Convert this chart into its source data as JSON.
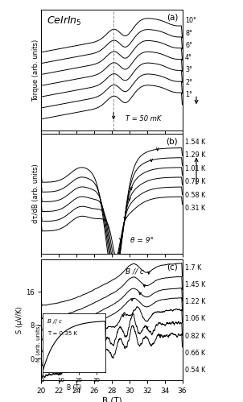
{
  "title": "CeIrIn$_5$",
  "xmin": 20,
  "xmax": 36,
  "xlabel": "B (T)",
  "panel_a": {
    "label": "(a)",
    "ylabel": "Torque (arb. units)",
    "T_label": "T = 50 mK",
    "angles": [
      "10°",
      "8°",
      "6°",
      "4°",
      "3°",
      "2°",
      "1°"
    ],
    "dashed_line_x": 28.2
  },
  "panel_b": {
    "label": "(b)",
    "ylabel": "dτ/dB (arb. units)",
    "theta_label": "θ = 9°",
    "temperatures": [
      "1.54 K",
      "1.29 K",
      "1.01 K",
      "0.79 K",
      "0.58 K",
      "0.31 K"
    ]
  },
  "panel_c": {
    "label": "(c)",
    "ylabel": "S (μV/K)",
    "Bparallel_label": "B // c",
    "temperatures": [
      "1.7 K",
      "1.45 K",
      "1.22 K",
      "1.06 K",
      "0.82 K",
      "0.66 K",
      "0.54 K"
    ],
    "ytick_labels": [
      "0",
      "8",
      "16"
    ],
    "inset": {
      "xlabel": "B (T)",
      "ylabel": "M (arb. units)",
      "label1": "B // c",
      "label2": "T = 0.35 K",
      "xmin": 0,
      "xmax": 35
    }
  }
}
